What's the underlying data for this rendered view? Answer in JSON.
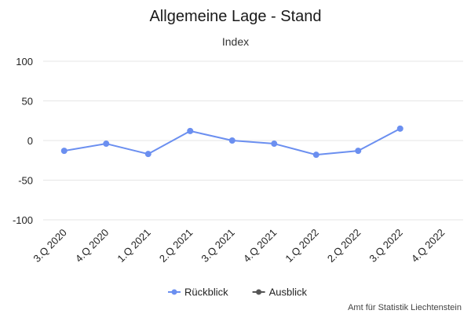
{
  "chart_data": {
    "type": "line",
    "title": "Allgemeine Lage - Stand",
    "subtitle": "Index",
    "categories": [
      "3.Q 2020",
      "4.Q 2020",
      "1.Q 2021",
      "2.Q 2021",
      "3.Q 2021",
      "4.Q 2021",
      "1.Q 2022",
      "2.Q 2022",
      "3.Q 2022",
      "4.Q 2022"
    ],
    "ylim": [
      -100,
      100
    ],
    "yticks": [
      100,
      50,
      0,
      -50,
      -100
    ],
    "grid": true,
    "legend_position": "bottom-center",
    "series": [
      {
        "name": "Rückblick",
        "color": "#6b8ff0",
        "values": [
          -13,
          -4,
          -17,
          12,
          0,
          -4,
          -18,
          -13,
          15,
          null
        ]
      },
      {
        "name": "Ausblick",
        "color": "#555555",
        "values": [
          null,
          null,
          null,
          null,
          null,
          null,
          null,
          null,
          null,
          null
        ]
      }
    ]
  },
  "credit": "Amt für Statistik Liechtenstein"
}
